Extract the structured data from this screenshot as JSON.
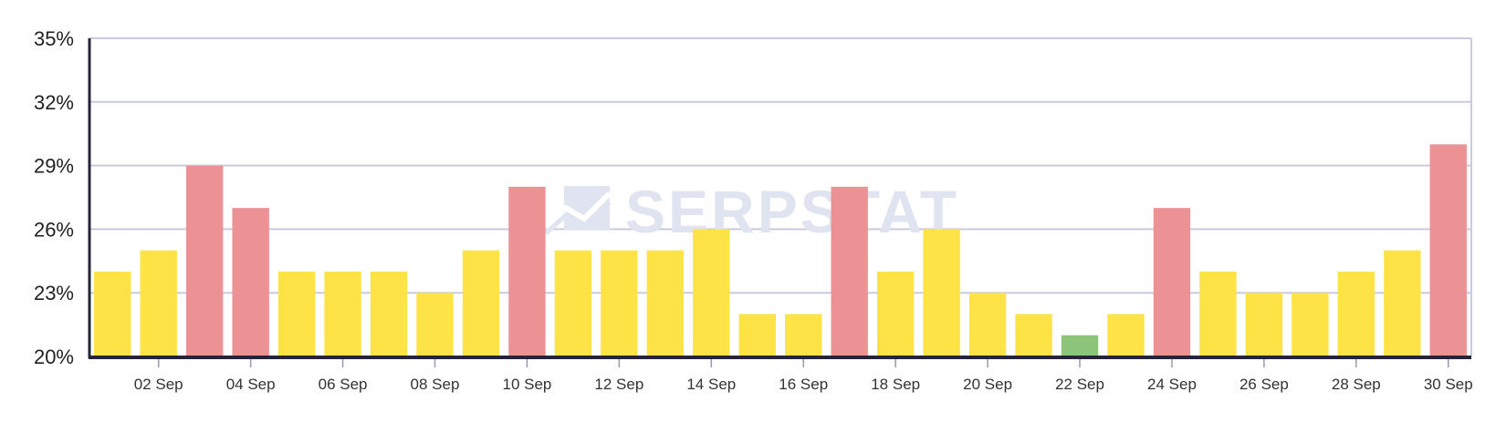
{
  "watermark": {
    "text": "SERPSTAT",
    "color": "#dfe4f0"
  },
  "colors": {
    "high": "#ec9194",
    "mid": "#fde345",
    "low": "#8cc47a",
    "grid": "#c9ccdc",
    "axis": "#26233a"
  },
  "chart_data": {
    "type": "bar",
    "title": "",
    "xlabel": "",
    "ylabel": "",
    "ylim": [
      20,
      35
    ],
    "y_ticks": [
      20,
      23,
      26,
      29,
      32,
      35
    ],
    "y_tick_labels": [
      "20%",
      "23%",
      "26%",
      "29%",
      "32%",
      "35%"
    ],
    "grid": true,
    "legend": "none",
    "categories": [
      "01 Sep",
      "02 Sep",
      "03 Sep",
      "04 Sep",
      "05 Sep",
      "06 Sep",
      "07 Sep",
      "08 Sep",
      "09 Sep",
      "10 Sep",
      "11 Sep",
      "12 Sep",
      "13 Sep",
      "14 Sep",
      "15 Sep",
      "16 Sep",
      "17 Sep",
      "18 Sep",
      "19 Sep",
      "20 Sep",
      "21 Sep",
      "22 Sep",
      "23 Sep",
      "24 Sep",
      "25 Sep",
      "26 Sep",
      "27 Sep",
      "28 Sep",
      "29 Sep",
      "30 Sep"
    ],
    "x_tick_labels": [
      "02 Sep",
      "04 Sep",
      "06 Sep",
      "08 Sep",
      "10 Sep",
      "12 Sep",
      "14 Sep",
      "16 Sep",
      "18 Sep",
      "20 Sep",
      "22 Sep",
      "24 Sep",
      "26 Sep",
      "28 Sep",
      "30 Sep"
    ],
    "values": [
      24,
      25,
      29,
      27,
      24,
      24,
      24,
      23,
      25,
      28,
      25,
      25,
      25,
      26,
      22,
      22,
      28,
      24,
      26,
      23,
      22,
      21,
      22,
      27,
      24,
      23,
      23,
      24,
      25,
      30
    ],
    "bar_levels": [
      "mid",
      "mid",
      "high",
      "high",
      "mid",
      "mid",
      "mid",
      "mid",
      "mid",
      "high",
      "mid",
      "mid",
      "mid",
      "mid",
      "mid",
      "mid",
      "high",
      "mid",
      "mid",
      "mid",
      "mid",
      "low",
      "mid",
      "high",
      "mid",
      "mid",
      "mid",
      "mid",
      "mid",
      "high"
    ]
  }
}
